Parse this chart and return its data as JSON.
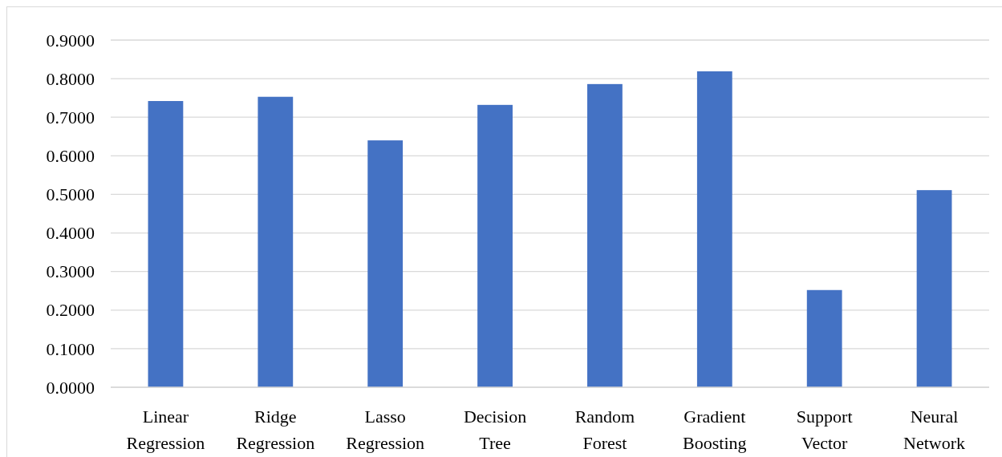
{
  "chart_data": {
    "type": "bar",
    "categories": [
      "Linear Regression",
      "Ridge Regression",
      "Lasso Regression",
      "Decision Tree",
      "Random Forest",
      "Gradient Boosting",
      "Support Vector",
      "Neural Network"
    ],
    "values": [
      0.742,
      0.753,
      0.64,
      0.732,
      0.786,
      0.819,
      0.252,
      0.511
    ],
    "color": "#4472c4",
    "ylim": [
      0,
      0.9
    ],
    "yticks": [
      {
        "value": 0,
        "label": "0.0000"
      },
      {
        "value": 0.1,
        "label": "0.1000"
      },
      {
        "value": 0.2,
        "label": "0.2000"
      },
      {
        "value": 0.3,
        "label": "0.3000"
      },
      {
        "value": 0.4,
        "label": "0.4000"
      },
      {
        "value": 0.5,
        "label": "0.5000"
      },
      {
        "value": 0.6,
        "label": "0.6000"
      },
      {
        "value": 0.7,
        "label": "0.7000"
      },
      {
        "value": 0.8,
        "label": "0.8000"
      },
      {
        "value": 0.9,
        "label": "0.9000"
      }
    ],
    "grid": "y"
  }
}
